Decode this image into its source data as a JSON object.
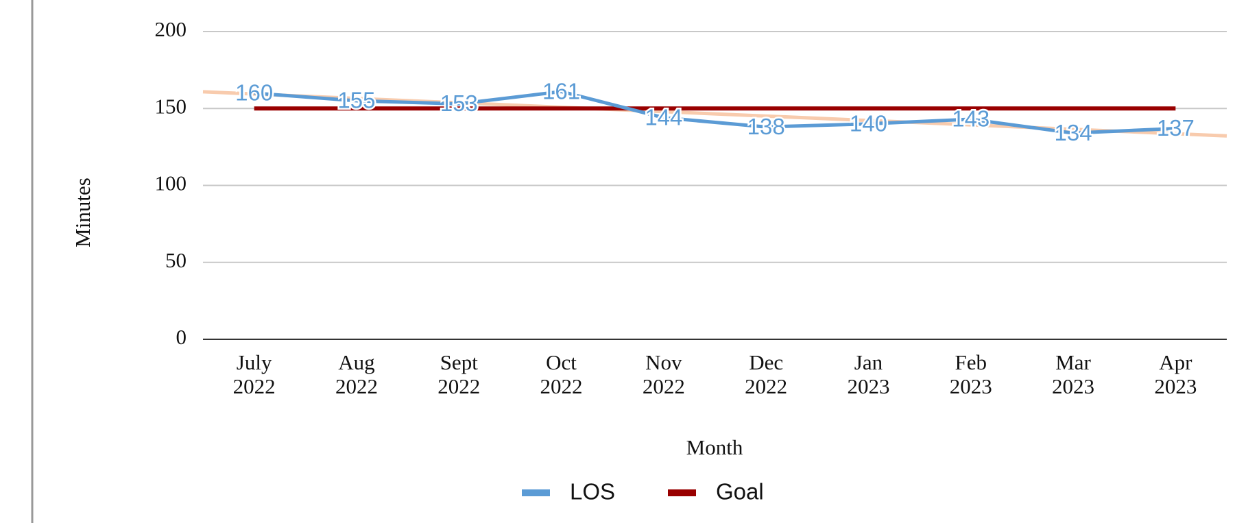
{
  "chart_data": {
    "type": "line",
    "x_label": "Month",
    "y_label": "Minutes",
    "categories": [
      "July 2022",
      "Aug 2022",
      "Sept 2022",
      "Oct 2022",
      "Nov 2022",
      "Dec 2022",
      "Jan 2023",
      "Feb 2023",
      "Mar 2023",
      "Apr 2023"
    ],
    "series": [
      {
        "name": "LOS",
        "color": "#5b9bd5",
        "values": [
          160,
          155,
          153,
          161,
          144,
          138,
          140,
          143,
          134,
          137
        ]
      },
      {
        "name": "Goal",
        "color": "#990000",
        "values": [
          150,
          150,
          150,
          150,
          150,
          150,
          150,
          150,
          150,
          150
        ]
      }
    ],
    "trendline_color": "#f8cbad",
    "ylim": [
      0,
      200
    ],
    "yticks": [
      0,
      50,
      100,
      150,
      200
    ],
    "grid": true,
    "legend": "bottom"
  }
}
